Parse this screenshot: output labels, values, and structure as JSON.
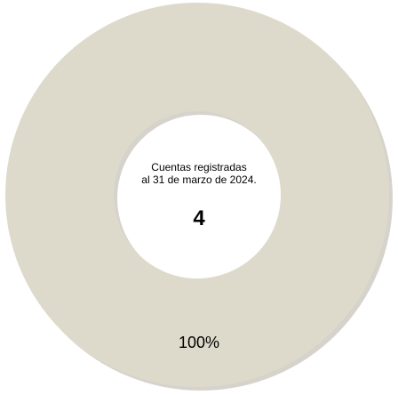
{
  "chart_data": {
    "type": "pie",
    "variant": "donut",
    "categories": [
      "Cuentas registradas"
    ],
    "values": [
      100
    ],
    "slice_labels": [
      "100%"
    ],
    "center_caption_lines": [
      "Cuentas registradas",
      "al 31 de marzo de 2024."
    ],
    "center_value": "4",
    "legend": "none",
    "colors": {
      "slice": "#dedacb",
      "shadow": "#b9b6aa"
    }
  }
}
